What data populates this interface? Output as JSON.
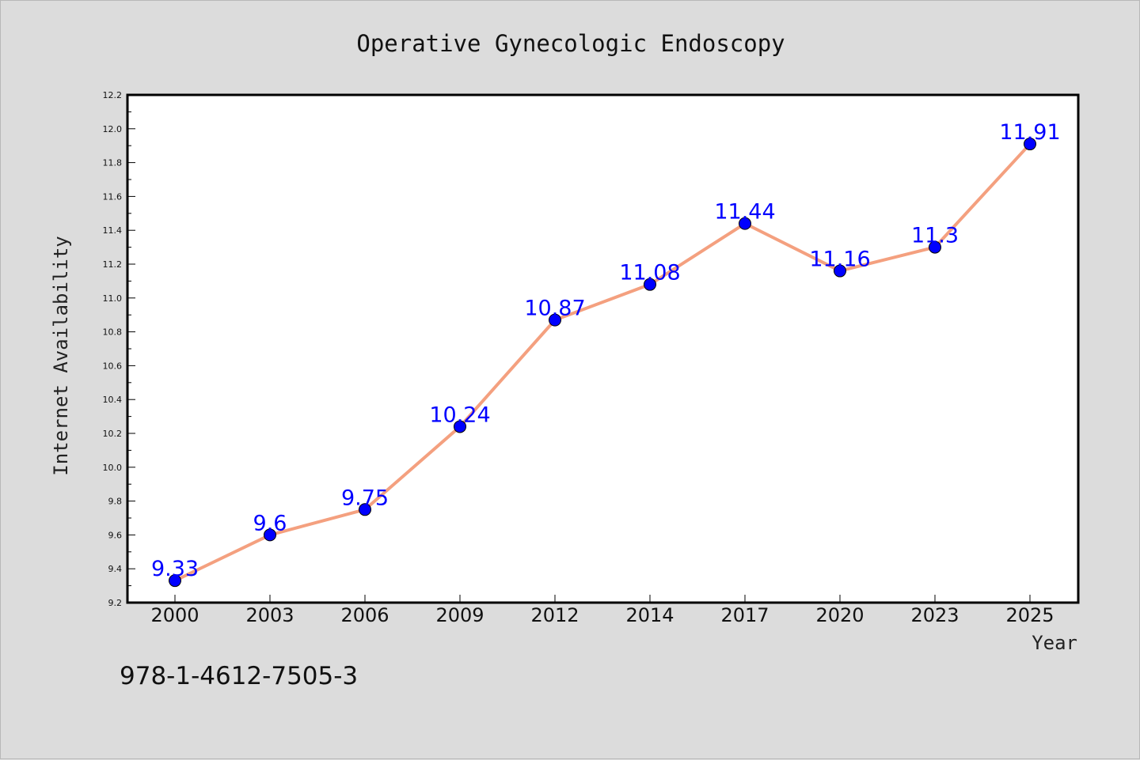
{
  "chart_data": {
    "type": "line",
    "title": "Operative Gynecologic Endoscopy",
    "xlabel": "Year",
    "ylabel": "Internet Availability",
    "categories": [
      "2000",
      "2003",
      "2006",
      "2009",
      "2012",
      "2014",
      "2017",
      "2020",
      "2023",
      "2025"
    ],
    "series": [
      {
        "values": [
          9.33,
          9.6,
          9.75,
          10.24,
          10.87,
          11.08,
          11.44,
          11.16,
          11.3,
          11.91
        ],
        "data_labels": [
          "9.33",
          "9.6",
          "9.75",
          "10.24",
          "10.87",
          "11.08",
          "11.44",
          "11.16",
          "11.3",
          "11.91"
        ],
        "line_color": "#f4a07f",
        "marker_color": "#0000ff"
      }
    ],
    "ylim": [
      9.2,
      12.2
    ],
    "yticks": [
      "9.2",
      "9.4",
      "9.6",
      "9.8",
      "10.0",
      "10.2",
      "10.4",
      "10.6",
      "10.8",
      "11.0",
      "11.2",
      "11.4",
      "11.6",
      "11.8",
      "12.0",
      "12.2"
    ],
    "grid": false,
    "legend": "none",
    "label_color": "#0000ff",
    "background": "#dcdcdc",
    "plot_background": "#ffffff"
  },
  "footer_text": "978-1-4612-7505-3"
}
